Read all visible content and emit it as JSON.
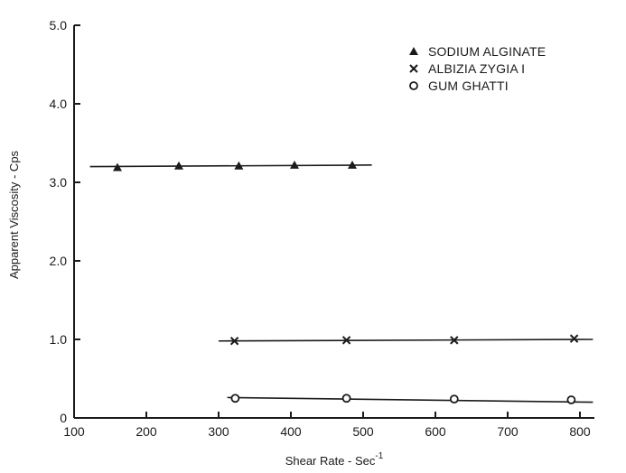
{
  "chart_data": {
    "type": "scatter",
    "xlabel": "Shear Rate - Sec",
    "xlabel_superscript": "-1",
    "ylabel": "Apparent Viscosity - Cps",
    "xlim": [
      100,
      820
    ],
    "ylim": [
      0,
      5.0
    ],
    "x_ticks": [
      100,
      200,
      300,
      400,
      500,
      600,
      700,
      800
    ],
    "x_tick_labels": [
      "100",
      "200",
      "300",
      "400",
      "500",
      "600",
      "700",
      "800"
    ],
    "y_ticks": [
      0,
      1.0,
      2.0,
      3.0,
      4.0,
      5.0
    ],
    "y_tick_labels": [
      "0",
      "1.0",
      "2.0",
      "3.0",
      "4.0",
      "5.0"
    ],
    "grid": false,
    "legend_position": "top-right",
    "series": [
      {
        "name": "SODIUM ALGINATE",
        "marker": "filled-triangle",
        "color": "#1a1a1a",
        "x": [
          160,
          245,
          328,
          405,
          485
        ],
        "y": [
          3.19,
          3.21,
          3.21,
          3.22,
          3.22
        ],
        "fit_line": {
          "x": [
            122,
            512
          ],
          "y": [
            3.2,
            3.22
          ]
        }
      },
      {
        "name": "ALBIZIA ZYGIA I",
        "marker": "x",
        "color": "#1a1a1a",
        "x": [
          322,
          477,
          626,
          792
        ],
        "y": [
          0.98,
          0.99,
          0.99,
          1.01
        ],
        "fit_line": {
          "x": [
            300,
            818
          ],
          "y": [
            0.98,
            1.0
          ]
        }
      },
      {
        "name": "GUM GHATTI",
        "marker": "open-circle",
        "color": "#1a1a1a",
        "x": [
          323,
          477,
          626,
          788
        ],
        "y": [
          0.25,
          0.25,
          0.24,
          0.23
        ],
        "fit_line": {
          "x": [
            312,
            818
          ],
          "y": [
            0.26,
            0.2
          ]
        }
      }
    ]
  }
}
